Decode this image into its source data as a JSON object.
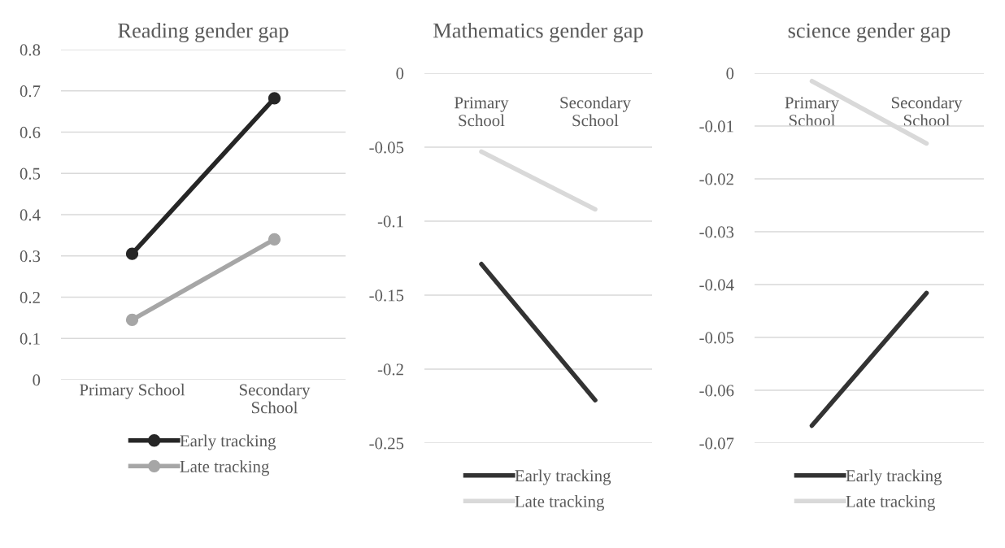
{
  "chart_data": [
    {
      "type": "line",
      "title": "Reading gender gap",
      "categories": [
        "Primary School",
        "Secondary\nSchool"
      ],
      "ylim": [
        0,
        0.8
      ],
      "yticks": [
        0,
        0.1,
        0.2,
        0.3,
        0.4,
        0.5,
        0.6,
        0.7,
        0.8
      ],
      "grid": "y",
      "legend": "bottom",
      "marker": "circle",
      "series": [
        {
          "name": "Early tracking",
          "color": "#262626",
          "values": [
            0.305,
            0.682
          ]
        },
        {
          "name": "Late tracking",
          "color": "#a6a6a6",
          "values": [
            0.145,
            0.34
          ]
        }
      ]
    },
    {
      "type": "line",
      "title": "Mathematics gender gap",
      "categories": [
        "Primary\nSchool",
        "Secondary\nSchool"
      ],
      "ylim": [
        -0.25,
        0
      ],
      "yticks": [
        -0.25,
        -0.2,
        -0.15,
        -0.1,
        -0.05,
        0
      ],
      "grid": "y",
      "legend": "bottom",
      "series": [
        {
          "name": "Early tracking",
          "color": "#333333",
          "values": [
            -0.129,
            -0.221
          ]
        },
        {
          "name": "Late tracking",
          "color": "#d9d9d9",
          "values": [
            -0.053,
            -0.092
          ]
        }
      ]
    },
    {
      "type": "line",
      "title": "science gender gap",
      "categories": [
        "Primary\nSchool",
        "Secondary\nSchool"
      ],
      "ylim": [
        -0.07,
        0
      ],
      "yticks": [
        -0.07,
        -0.06,
        -0.05,
        -0.04,
        -0.03,
        -0.02,
        -0.01,
        0
      ],
      "grid": "y",
      "legend": "bottom",
      "series": [
        {
          "name": "Early tracking",
          "color": "#333333",
          "values": [
            -0.0667,
            -0.0416
          ]
        },
        {
          "name": "Late tracking",
          "color": "#d9d9d9",
          "values": [
            -0.0015,
            -0.0133
          ]
        }
      ]
    }
  ]
}
